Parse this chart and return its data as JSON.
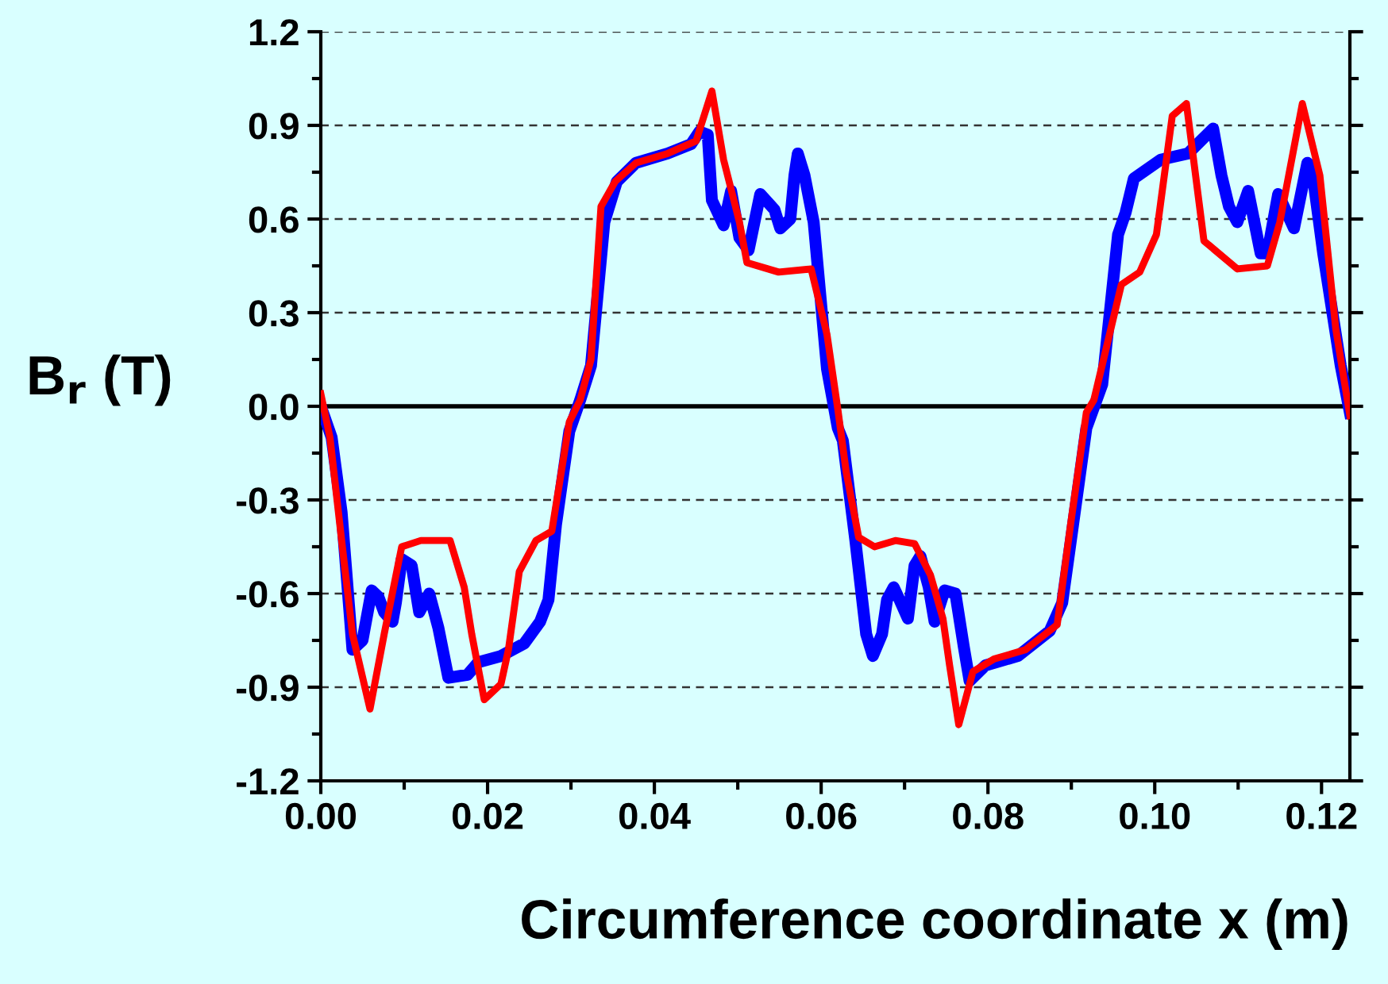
{
  "chart_data": {
    "type": "line",
    "xlabel": "Circumference coordinate x (m)",
    "ylabel": "B$_{r}$ (T)",
    "xlim": [
      0,
      0.1234
    ],
    "ylim": [
      -1.2,
      1.2
    ],
    "xticks": [
      {
        "value": 0,
        "label": "0.00"
      },
      {
        "value": 0.02,
        "label": "0.02"
      },
      {
        "value": 0.04,
        "label": "0.04"
      },
      {
        "value": 0.06,
        "label": "0.06"
      },
      {
        "value": 0.08,
        "label": "0.08"
      },
      {
        "value": 0.1,
        "label": "0.10"
      },
      {
        "value": 0.12,
        "label": "0.12"
      }
    ],
    "yticks": [
      {
        "value": -1.2,
        "label": "-1.2"
      },
      {
        "value": -0.9,
        "label": "-0.9"
      },
      {
        "value": -0.6,
        "label": "-0.6"
      },
      {
        "value": -0.3,
        "label": "-0.3"
      },
      {
        "value": 0,
        "label": "0.0"
      },
      {
        "value": 0.3,
        "label": "0.3"
      },
      {
        "value": 0.6,
        "label": "0.6"
      },
      {
        "value": 0.9,
        "label": "0.9"
      },
      {
        "value": 1.2,
        "label": "1.2"
      }
    ],
    "grid": "y",
    "legend": false,
    "marker": "none",
    "line_style": "solid",
    "ref_lines": [
      {
        "axis": "y",
        "value": 0,
        "color": "#000000"
      }
    ],
    "series": [
      {
        "color": "#0000ff",
        "x": [
          0.0,
          0.0013,
          0.0025,
          0.0038,
          0.005,
          0.0061,
          0.0069,
          0.0076,
          0.0086,
          0.009,
          0.0097,
          0.0109,
          0.0118,
          0.013,
          0.0141,
          0.0153,
          0.0176,
          0.0189,
          0.0216,
          0.0244,
          0.0263,
          0.0273,
          0.0282,
          0.0298,
          0.0311,
          0.0324,
          0.034,
          0.0355,
          0.0378,
          0.0416,
          0.0444,
          0.0454,
          0.0464,
          0.0469,
          0.0483,
          0.0492,
          0.0502,
          0.0513,
          0.0527,
          0.0544,
          0.0551,
          0.0563,
          0.0568,
          0.0572,
          0.058,
          0.0591,
          0.0607,
          0.062,
          0.0626,
          0.0641,
          0.0654,
          0.0662,
          0.0673,
          0.0679,
          0.0687,
          0.0694,
          0.0704,
          0.0712,
          0.0719,
          0.0729,
          0.0736,
          0.0748,
          0.0761,
          0.0771,
          0.0778,
          0.0797,
          0.0836,
          0.0874,
          0.0889,
          0.0902,
          0.0918,
          0.0937,
          0.0956,
          0.0965,
          0.0975,
          0.1007,
          0.104,
          0.1055,
          0.107,
          0.108,
          0.1089,
          0.1099,
          0.1112,
          0.1127,
          0.1135,
          0.1148,
          0.1167,
          0.1183,
          0.1188,
          0.1202,
          0.1223,
          0.1234
        ],
        "values": [
          0.0,
          -0.1,
          -0.34,
          -0.78,
          -0.75,
          -0.59,
          -0.61,
          -0.66,
          -0.69,
          -0.63,
          -0.49,
          -0.51,
          -0.66,
          -0.6,
          -0.71,
          -0.87,
          -0.86,
          -0.82,
          -0.8,
          -0.76,
          -0.69,
          -0.62,
          -0.38,
          -0.08,
          0.02,
          0.13,
          0.59,
          0.72,
          0.78,
          0.81,
          0.84,
          0.88,
          0.87,
          0.66,
          0.58,
          0.69,
          0.54,
          0.5,
          0.68,
          0.63,
          0.57,
          0.6,
          0.74,
          0.81,
          0.74,
          0.59,
          0.12,
          -0.07,
          -0.11,
          -0.43,
          -0.73,
          -0.8,
          -0.73,
          -0.62,
          -0.58,
          -0.62,
          -0.68,
          -0.51,
          -0.48,
          -0.58,
          -0.69,
          -0.59,
          -0.6,
          -0.77,
          -0.88,
          -0.83,
          -0.8,
          -0.72,
          -0.63,
          -0.38,
          -0.07,
          0.07,
          0.55,
          0.62,
          0.73,
          0.79,
          0.81,
          0.85,
          0.89,
          0.74,
          0.64,
          0.59,
          0.69,
          0.49,
          0.49,
          0.68,
          0.57,
          0.78,
          0.77,
          0.49,
          0.13,
          -0.02
        ]
      },
      {
        "color": "#ff0000",
        "x": [
          0.0,
          0.0011,
          0.0025,
          0.0038,
          0.0059,
          0.0076,
          0.0097,
          0.012,
          0.0155,
          0.0172,
          0.0181,
          0.0196,
          0.0216,
          0.0225,
          0.0238,
          0.0258,
          0.0277,
          0.0286,
          0.0298,
          0.0311,
          0.0324,
          0.0336,
          0.0353,
          0.0378,
          0.0416,
          0.045,
          0.0469,
          0.0483,
          0.0502,
          0.0511,
          0.0549,
          0.0588,
          0.0607,
          0.062,
          0.063,
          0.0645,
          0.0664,
          0.0689,
          0.0712,
          0.0731,
          0.0746,
          0.0754,
          0.0765,
          0.0782,
          0.0807,
          0.0845,
          0.0883,
          0.0899,
          0.0918,
          0.0927,
          0.096,
          0.0982,
          0.1002,
          0.1021,
          0.1038,
          0.1059,
          0.1099,
          0.1135,
          0.115,
          0.1177,
          0.1198,
          0.1217,
          0.1234
        ],
        "values": [
          0.04,
          -0.1,
          -0.43,
          -0.73,
          -0.97,
          -0.73,
          -0.45,
          -0.43,
          -0.43,
          -0.58,
          -0.73,
          -0.94,
          -0.89,
          -0.78,
          -0.53,
          -0.43,
          -0.4,
          -0.25,
          -0.05,
          0.02,
          0.15,
          0.64,
          0.72,
          0.78,
          0.81,
          0.85,
          1.01,
          0.79,
          0.59,
          0.46,
          0.43,
          0.44,
          0.23,
          -0.01,
          -0.21,
          -0.42,
          -0.45,
          -0.43,
          -0.44,
          -0.54,
          -0.68,
          -0.83,
          -1.02,
          -0.85,
          -0.81,
          -0.78,
          -0.7,
          -0.38,
          -0.02,
          0.02,
          0.39,
          0.43,
          0.55,
          0.93,
          0.97,
          0.53,
          0.44,
          0.45,
          0.59,
          0.97,
          0.74,
          0.25,
          -0.03
        ]
      }
    ]
  }
}
